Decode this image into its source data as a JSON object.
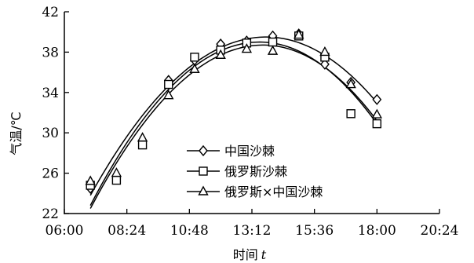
{
  "chart_data": {
    "type": "line",
    "xlabel": "时间",
    "xlabel_var": "t",
    "ylabel": "气温/℃",
    "xlim": [
      360,
      1224
    ],
    "ylim": [
      22,
      42
    ],
    "x_ticks": [
      {
        "value": 360,
        "label": "06:00"
      },
      {
        "value": 504,
        "label": "08:24"
      },
      {
        "value": 648,
        "label": "10:48"
      },
      {
        "value": 792,
        "label": "13:12"
      },
      {
        "value": 936,
        "label": "15:36"
      },
      {
        "value": 1080,
        "label": "18:00"
      },
      {
        "value": 1224,
        "label": "20:24"
      }
    ],
    "y_ticks": [
      22,
      26,
      30,
      34,
      38,
      42
    ],
    "legend_position": "center",
    "grid": false,
    "series": [
      {
        "name": "中国沙棘",
        "marker": "diamond",
        "points": [
          {
            "x": 420,
            "y": 24.5
          },
          {
            "x": 480,
            "y": 25.5
          },
          {
            "x": 540,
            "y": 29.2
          },
          {
            "x": 600,
            "y": 35.2
          },
          {
            "x": 660,
            "y": 37.2
          },
          {
            "x": 720,
            "y": 38.8
          },
          {
            "x": 780,
            "y": 39.1
          },
          {
            "x": 840,
            "y": 39.6
          },
          {
            "x": 900,
            "y": 39.8
          },
          {
            "x": 960,
            "y": 36.8
          },
          {
            "x": 1020,
            "y": 35.0
          },
          {
            "x": 1080,
            "y": 33.3
          }
        ],
        "fit": {
          "x_start": 420,
          "x_end": 1080,
          "y_start": 23.8,
          "peak_x": 825,
          "peak_y": 39.5,
          "y_end": 33.0
        }
      },
      {
        "name": "俄罗斯沙棘",
        "marker": "square",
        "points": [
          {
            "x": 420,
            "y": 24.8
          },
          {
            "x": 480,
            "y": 25.3
          },
          {
            "x": 540,
            "y": 28.8
          },
          {
            "x": 600,
            "y": 34.8
          },
          {
            "x": 660,
            "y": 37.5
          },
          {
            "x": 720,
            "y": 38.2
          },
          {
            "x": 780,
            "y": 38.9
          },
          {
            "x": 840,
            "y": 39.0
          },
          {
            "x": 900,
            "y": 39.6
          },
          {
            "x": 960,
            "y": 37.5
          },
          {
            "x": 1020,
            "y": 31.9
          },
          {
            "x": 1080,
            "y": 30.9
          }
        ],
        "fit": {
          "x_start": 420,
          "x_end": 1080,
          "y_start": 22.8,
          "peak_x": 810,
          "peak_y": 39.0,
          "y_end": 30.9
        }
      },
      {
        "name": "俄罗斯×中国沙棘",
        "marker": "triangle",
        "points": [
          {
            "x": 420,
            "y": 25.2
          },
          {
            "x": 480,
            "y": 26.0
          },
          {
            "x": 540,
            "y": 29.5
          },
          {
            "x": 600,
            "y": 33.7
          },
          {
            "x": 660,
            "y": 36.3
          },
          {
            "x": 720,
            "y": 37.7
          },
          {
            "x": 780,
            "y": 38.3
          },
          {
            "x": 840,
            "y": 38.1
          },
          {
            "x": 900,
            "y": 39.7
          },
          {
            "x": 960,
            "y": 38.0
          },
          {
            "x": 1020,
            "y": 34.8
          },
          {
            "x": 1080,
            "y": 31.8
          }
        ],
        "fit": {
          "x_start": 420,
          "x_end": 1080,
          "y_start": 22.5,
          "peak_x": 818,
          "peak_y": 38.7,
          "y_end": 31.2
        }
      }
    ]
  }
}
